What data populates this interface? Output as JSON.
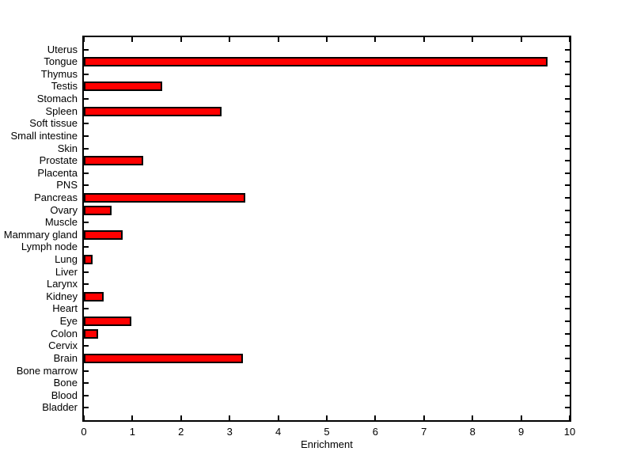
{
  "figure": {
    "background_color": "#FFFFFF",
    "axis_color": "#000000"
  },
  "chart_data": {
    "type": "bar",
    "orientation": "horizontal",
    "title": "",
    "xlabel": "Enrichment",
    "ylabel": "",
    "xlim": [
      0,
      10
    ],
    "x_ticks": [
      0,
      1,
      2,
      3,
      4,
      5,
      6,
      7,
      8,
      9,
      10
    ],
    "grid": false,
    "legend": false,
    "bar_color": "#FF0000",
    "bar_edge_color": "#000000",
    "categories": [
      "Uterus",
      "Tongue",
      "Thymus",
      "Testis",
      "Stomach",
      "Spleen",
      "Soft tissue",
      "Small intestine",
      "Skin",
      "Prostate",
      "Placenta",
      "PNS",
      "Pancreas",
      "Ovary",
      "Muscle",
      "Mammary gland",
      "Lymph node",
      "Lung",
      "Liver",
      "Larynx",
      "Kidney",
      "Heart",
      "Eye",
      "Colon",
      "Cervix",
      "Brain",
      "Bone marrow",
      "Bone",
      "Blood",
      "Bladder"
    ],
    "values": [
      0,
      9.54,
      0,
      1.61,
      0,
      2.84,
      0,
      0,
      0,
      1.22,
      0,
      0,
      3.33,
      0.57,
      0,
      0.79,
      0,
      0.18,
      0,
      0,
      0.4,
      0,
      0.97,
      0.3,
      0,
      3.28,
      0,
      0,
      0,
      0
    ]
  }
}
